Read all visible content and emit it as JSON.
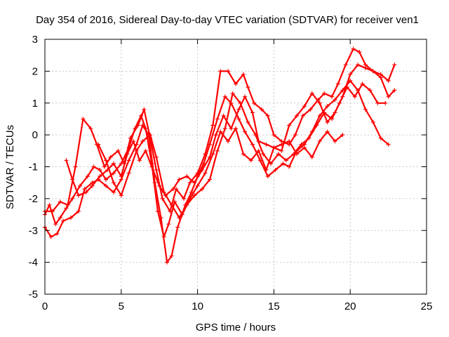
{
  "chart_data": {
    "type": "scatter",
    "title": "Day 354 of 2016, Sidereal Day-to-day VTEC variation (SDTVAR) for receiver ven1",
    "xlabel": "GPS time / hours",
    "ylabel": "SDTVAR / TECUs",
    "xlim": [
      0,
      25
    ],
    "ylim": [
      -5,
      3
    ],
    "xticks": [
      0,
      5,
      10,
      15,
      20,
      25
    ],
    "yticks": [
      -5,
      -4,
      -3,
      -2,
      -1,
      0,
      1,
      2,
      3
    ],
    "grid": true,
    "marker": "plus",
    "color": "#ff0000",
    "series": [
      {
        "points": [
          [
            0.0,
            -2.5
          ],
          [
            0.3,
            -2.2
          ],
          [
            0.7,
            -2.8
          ],
          [
            1.0,
            -2.6
          ],
          [
            1.4,
            -2.3
          ],
          [
            1.8,
            -2.0
          ],
          [
            2.3,
            -1.6
          ],
          [
            2.8,
            -1.3
          ],
          [
            3.2,
            -1.0
          ],
          [
            3.6,
            -1.1
          ],
          [
            4.0,
            -1.4
          ],
          [
            4.5,
            -1.2
          ],
          [
            5.0,
            -0.9
          ],
          [
            5.5,
            -0.4
          ],
          [
            5.9,
            0.2
          ],
          [
            6.3,
            0.6
          ],
          [
            6.6,
            0.2
          ],
          [
            7.0,
            -0.9
          ],
          [
            7.4,
            -2.4
          ],
          [
            7.8,
            -3.2
          ],
          [
            8.1,
            -2.8
          ],
          [
            8.5,
            -2.1
          ],
          [
            9.0,
            -2.5
          ],
          [
            9.5,
            -2.0
          ],
          [
            10.0,
            -1.6
          ],
          [
            10.5,
            -1.2
          ],
          [
            11.0,
            -0.6
          ],
          [
            11.5,
            0.1
          ],
          [
            12.0,
            -0.2
          ],
          [
            12.5,
            0.2
          ],
          [
            13.0,
            -0.6
          ],
          [
            13.5,
            -0.8
          ],
          [
            14.0,
            -0.5
          ],
          [
            14.5,
            -1.1
          ],
          [
            15.0,
            -0.4
          ],
          [
            15.5,
            -0.3
          ],
          [
            16.0,
            -0.2
          ],
          [
            16.5,
            -0.6
          ],
          [
            17.0,
            -0.4
          ],
          [
            17.5,
            -0.7
          ],
          [
            18.0,
            -0.2
          ],
          [
            18.5,
            0.1
          ],
          [
            19.0,
            -0.2
          ],
          [
            19.5,
            0.0
          ]
        ]
      },
      {
        "points": [
          [
            0.0,
            -2.9
          ],
          [
            0.4,
            -3.2
          ],
          [
            0.8,
            -3.1
          ],
          [
            1.2,
            -2.7
          ],
          [
            1.7,
            -2.6
          ],
          [
            2.2,
            -2.4
          ],
          [
            2.6,
            -1.7
          ],
          [
            3.1,
            -1.5
          ],
          [
            3.5,
            -1.4
          ],
          [
            4.0,
            -1.6
          ],
          [
            4.5,
            -1.8
          ],
          [
            5.0,
            -1.4
          ],
          [
            5.5,
            -0.8
          ],
          [
            6.0,
            -0.3
          ],
          [
            6.4,
            0.3
          ],
          [
            6.8,
            0.0
          ],
          [
            7.2,
            -1.5
          ],
          [
            7.6,
            -2.6
          ],
          [
            8.0,
            -4.0
          ],
          [
            8.3,
            -3.8
          ],
          [
            8.7,
            -2.9
          ],
          [
            9.2,
            -2.2
          ],
          [
            9.6,
            -1.8
          ],
          [
            10.0,
            -1.3
          ],
          [
            10.4,
            -0.9
          ],
          [
            10.8,
            -0.3
          ],
          [
            11.3,
            0.5
          ],
          [
            11.8,
            1.2
          ],
          [
            12.2,
            1.0
          ],
          [
            12.7,
            0.5
          ],
          [
            13.1,
            0.1
          ],
          [
            13.6,
            -0.3
          ],
          [
            14.1,
            -0.8
          ],
          [
            14.6,
            -1.3
          ],
          [
            15.1,
            -1.1
          ],
          [
            15.6,
            -0.9
          ],
          [
            16.0,
            -1.0
          ],
          [
            16.5,
            -0.5
          ],
          [
            17.0,
            -0.3
          ],
          [
            17.5,
            0.1
          ],
          [
            18.0,
            0.6
          ],
          [
            18.5,
            0.9
          ],
          [
            19.0,
            1.1
          ],
          [
            19.5,
            1.4
          ],
          [
            20.0,
            1.7
          ],
          [
            20.5,
            1.4
          ],
          [
            21.0,
            0.8
          ],
          [
            21.5,
            0.4
          ],
          [
            22.0,
            -0.1
          ],
          [
            22.5,
            -0.3
          ]
        ]
      },
      {
        "points": [
          [
            0.0,
            -2.4
          ],
          [
            0.5,
            -2.4
          ],
          [
            1.0,
            -2.1
          ],
          [
            1.5,
            -2.2
          ],
          [
            2.0,
            -1.0
          ],
          [
            2.5,
            0.5
          ],
          [
            3.0,
            0.2
          ],
          [
            3.4,
            -0.3
          ],
          [
            3.9,
            -1.0
          ],
          [
            4.3,
            -0.7
          ],
          [
            4.8,
            -0.5
          ],
          [
            5.2,
            -0.9
          ],
          [
            5.6,
            -0.1
          ],
          [
            6.1,
            0.3
          ],
          [
            6.5,
            0.8
          ],
          [
            6.9,
            -0.1
          ],
          [
            7.3,
            -1.1
          ],
          [
            7.7,
            -2.0
          ],
          [
            8.2,
            -2.4
          ],
          [
            8.6,
            -1.7
          ],
          [
            9.1,
            -2.0
          ],
          [
            9.5,
            -1.5
          ],
          [
            10.0,
            -1.2
          ],
          [
            10.5,
            -0.6
          ],
          [
            11.0,
            0.3
          ],
          [
            11.5,
            2.0
          ],
          [
            12.0,
            2.0
          ],
          [
            12.5,
            1.6
          ],
          [
            13.0,
            1.9
          ],
          [
            13.3,
            1.5
          ],
          [
            13.7,
            1.0
          ],
          [
            14.2,
            0.8
          ],
          [
            14.6,
            0.6
          ],
          [
            15.0,
            0.0
          ],
          [
            15.5,
            -0.2
          ],
          [
            16.0,
            -0.3
          ],
          [
            16.4,
            0.0
          ],
          [
            16.9,
            0.6
          ],
          [
            17.4,
            0.8
          ],
          [
            17.9,
            1.1
          ],
          [
            18.3,
            1.3
          ],
          [
            18.8,
            1.2
          ],
          [
            19.2,
            1.6
          ],
          [
            19.7,
            2.2
          ],
          [
            20.2,
            2.7
          ],
          [
            20.6,
            2.6
          ],
          [
            21.0,
            2.2
          ],
          [
            21.5,
            2.0
          ],
          [
            22.0,
            1.9
          ],
          [
            22.5,
            1.7
          ],
          [
            22.9,
            2.2
          ]
        ]
      },
      {
        "points": [
          [
            1.4,
            -0.8
          ],
          [
            1.8,
            -1.4
          ],
          [
            2.2,
            -1.9
          ],
          [
            2.7,
            -1.8
          ],
          [
            3.1,
            -1.6
          ],
          [
            3.6,
            -1.3
          ],
          [
            4.1,
            -1.1
          ],
          [
            4.5,
            -0.9
          ],
          [
            5.0,
            -1.3
          ],
          [
            5.4,
            -0.6
          ],
          [
            5.8,
            -0.2
          ],
          [
            6.2,
            -0.8
          ],
          [
            6.6,
            -0.5
          ],
          [
            7.0,
            -1.0
          ],
          [
            7.5,
            -1.6
          ],
          [
            7.9,
            -1.9
          ],
          [
            8.4,
            -1.7
          ],
          [
            8.8,
            -1.4
          ],
          [
            9.3,
            -1.3
          ],
          [
            9.8,
            -1.5
          ],
          [
            10.3,
            -1.1
          ],
          [
            10.8,
            -0.7
          ],
          [
            11.2,
            0.0
          ],
          [
            11.7,
            0.6
          ],
          [
            12.2,
            0.2
          ],
          [
            12.7,
            0.8
          ],
          [
            13.1,
            1.2
          ],
          [
            13.6,
            0.7
          ],
          [
            14.0,
            -0.2
          ],
          [
            14.5,
            -0.3
          ],
          [
            15.0,
            -0.4
          ],
          [
            15.5,
            -0.5
          ],
          [
            16.0,
            0.3
          ],
          [
            16.5,
            0.6
          ],
          [
            17.0,
            0.9
          ],
          [
            17.5,
            1.3
          ],
          [
            18.0,
            1.0
          ],
          [
            18.5,
            0.4
          ],
          [
            19.0,
            0.7
          ],
          [
            19.5,
            1.2
          ],
          [
            20.0,
            1.9
          ],
          [
            20.5,
            2.2
          ],
          [
            21.0,
            2.1
          ],
          [
            21.5,
            2.0
          ],
          [
            22.0,
            1.8
          ],
          [
            22.5,
            1.2
          ],
          [
            22.9,
            1.4
          ]
        ]
      },
      {
        "points": [
          [
            3.5,
            -0.3
          ],
          [
            4.0,
            -0.8
          ],
          [
            4.5,
            -1.5
          ],
          [
            5.0,
            -1.9
          ],
          [
            5.5,
            -1.2
          ],
          [
            6.0,
            -0.5
          ],
          [
            6.4,
            -0.2
          ],
          [
            6.9,
            0.0
          ],
          [
            7.3,
            -0.7
          ],
          [
            7.8,
            -1.8
          ],
          [
            8.3,
            -2.2
          ],
          [
            8.8,
            -2.6
          ],
          [
            9.3,
            -2.2
          ],
          [
            9.8,
            -1.9
          ],
          [
            10.3,
            -1.7
          ],
          [
            10.8,
            -1.4
          ],
          [
            11.3,
            -0.5
          ],
          [
            11.8,
            0.2
          ],
          [
            12.3,
            1.3
          ],
          [
            12.8,
            1.0
          ],
          [
            13.3,
            0.4
          ],
          [
            13.8,
            0.0
          ],
          [
            14.3,
            -0.6
          ],
          [
            14.8,
            -0.9
          ],
          [
            15.3,
            -0.6
          ],
          [
            15.8,
            -0.8
          ],
          [
            16.3,
            -0.6
          ],
          [
            16.8,
            -0.3
          ],
          [
            17.3,
            -0.1
          ],
          [
            17.8,
            0.3
          ],
          [
            18.3,
            0.7
          ],
          [
            18.8,
            0.5
          ],
          [
            19.3,
            1.0
          ],
          [
            19.8,
            1.5
          ],
          [
            20.3,
            1.2
          ],
          [
            20.8,
            1.6
          ],
          [
            21.3,
            1.4
          ],
          [
            21.8,
            1.0
          ],
          [
            22.3,
            1.0
          ]
        ]
      }
    ]
  }
}
